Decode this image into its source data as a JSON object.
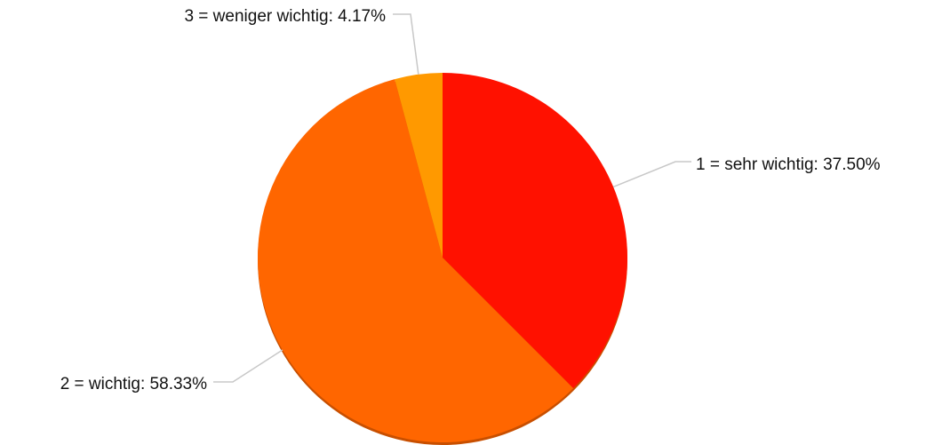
{
  "chart_data": {
    "type": "pie",
    "labels": [
      "1 = sehr wichtig: 37.50%",
      "2 = wichtig: 58.33%",
      "3 = weniger wichtig: 4.17%"
    ],
    "values": [
      37.5,
      58.33,
      4.17
    ],
    "colors": [
      "#ff1100",
      "#ff6600",
      "#ff9900"
    ],
    "start_angle": 0,
    "direction": "clockwise"
  }
}
